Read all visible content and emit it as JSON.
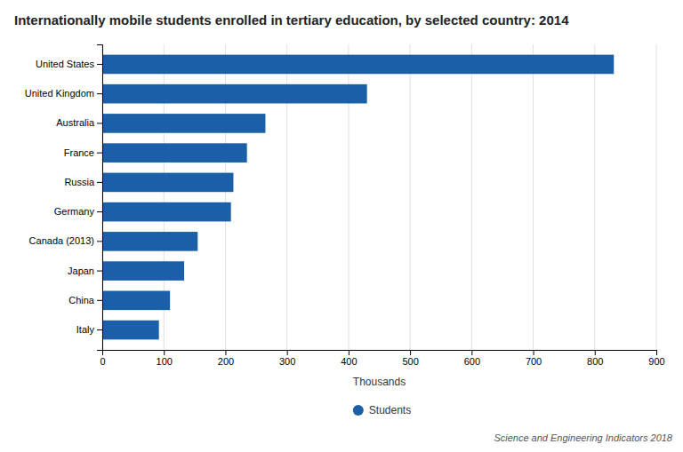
{
  "chart_data": {
    "type": "bar",
    "orientation": "horizontal",
    "title": "Internationally mobile students enrolled in tertiary education, by selected country: 2014",
    "categories": [
      "United States",
      "United Kingdom",
      "Australia",
      "France",
      "Russia",
      "Germany",
      "Canada (2013)",
      "Japan",
      "China",
      "Italy"
    ],
    "series": [
      {
        "name": "Students",
        "color": "#1a5fa8",
        "values": [
          831,
          430,
          265,
          235,
          213,
          209,
          155,
          133,
          110,
          92
        ]
      }
    ],
    "xlabel": "Thousands",
    "xlim": [
      0,
      900
    ],
    "xticks": [
      0,
      100,
      200,
      300,
      400,
      500,
      600,
      700,
      800,
      900
    ],
    "grid": true,
    "legend": "bottom",
    "annotations": [
      "Science and Engineering Indicators 2018"
    ]
  }
}
